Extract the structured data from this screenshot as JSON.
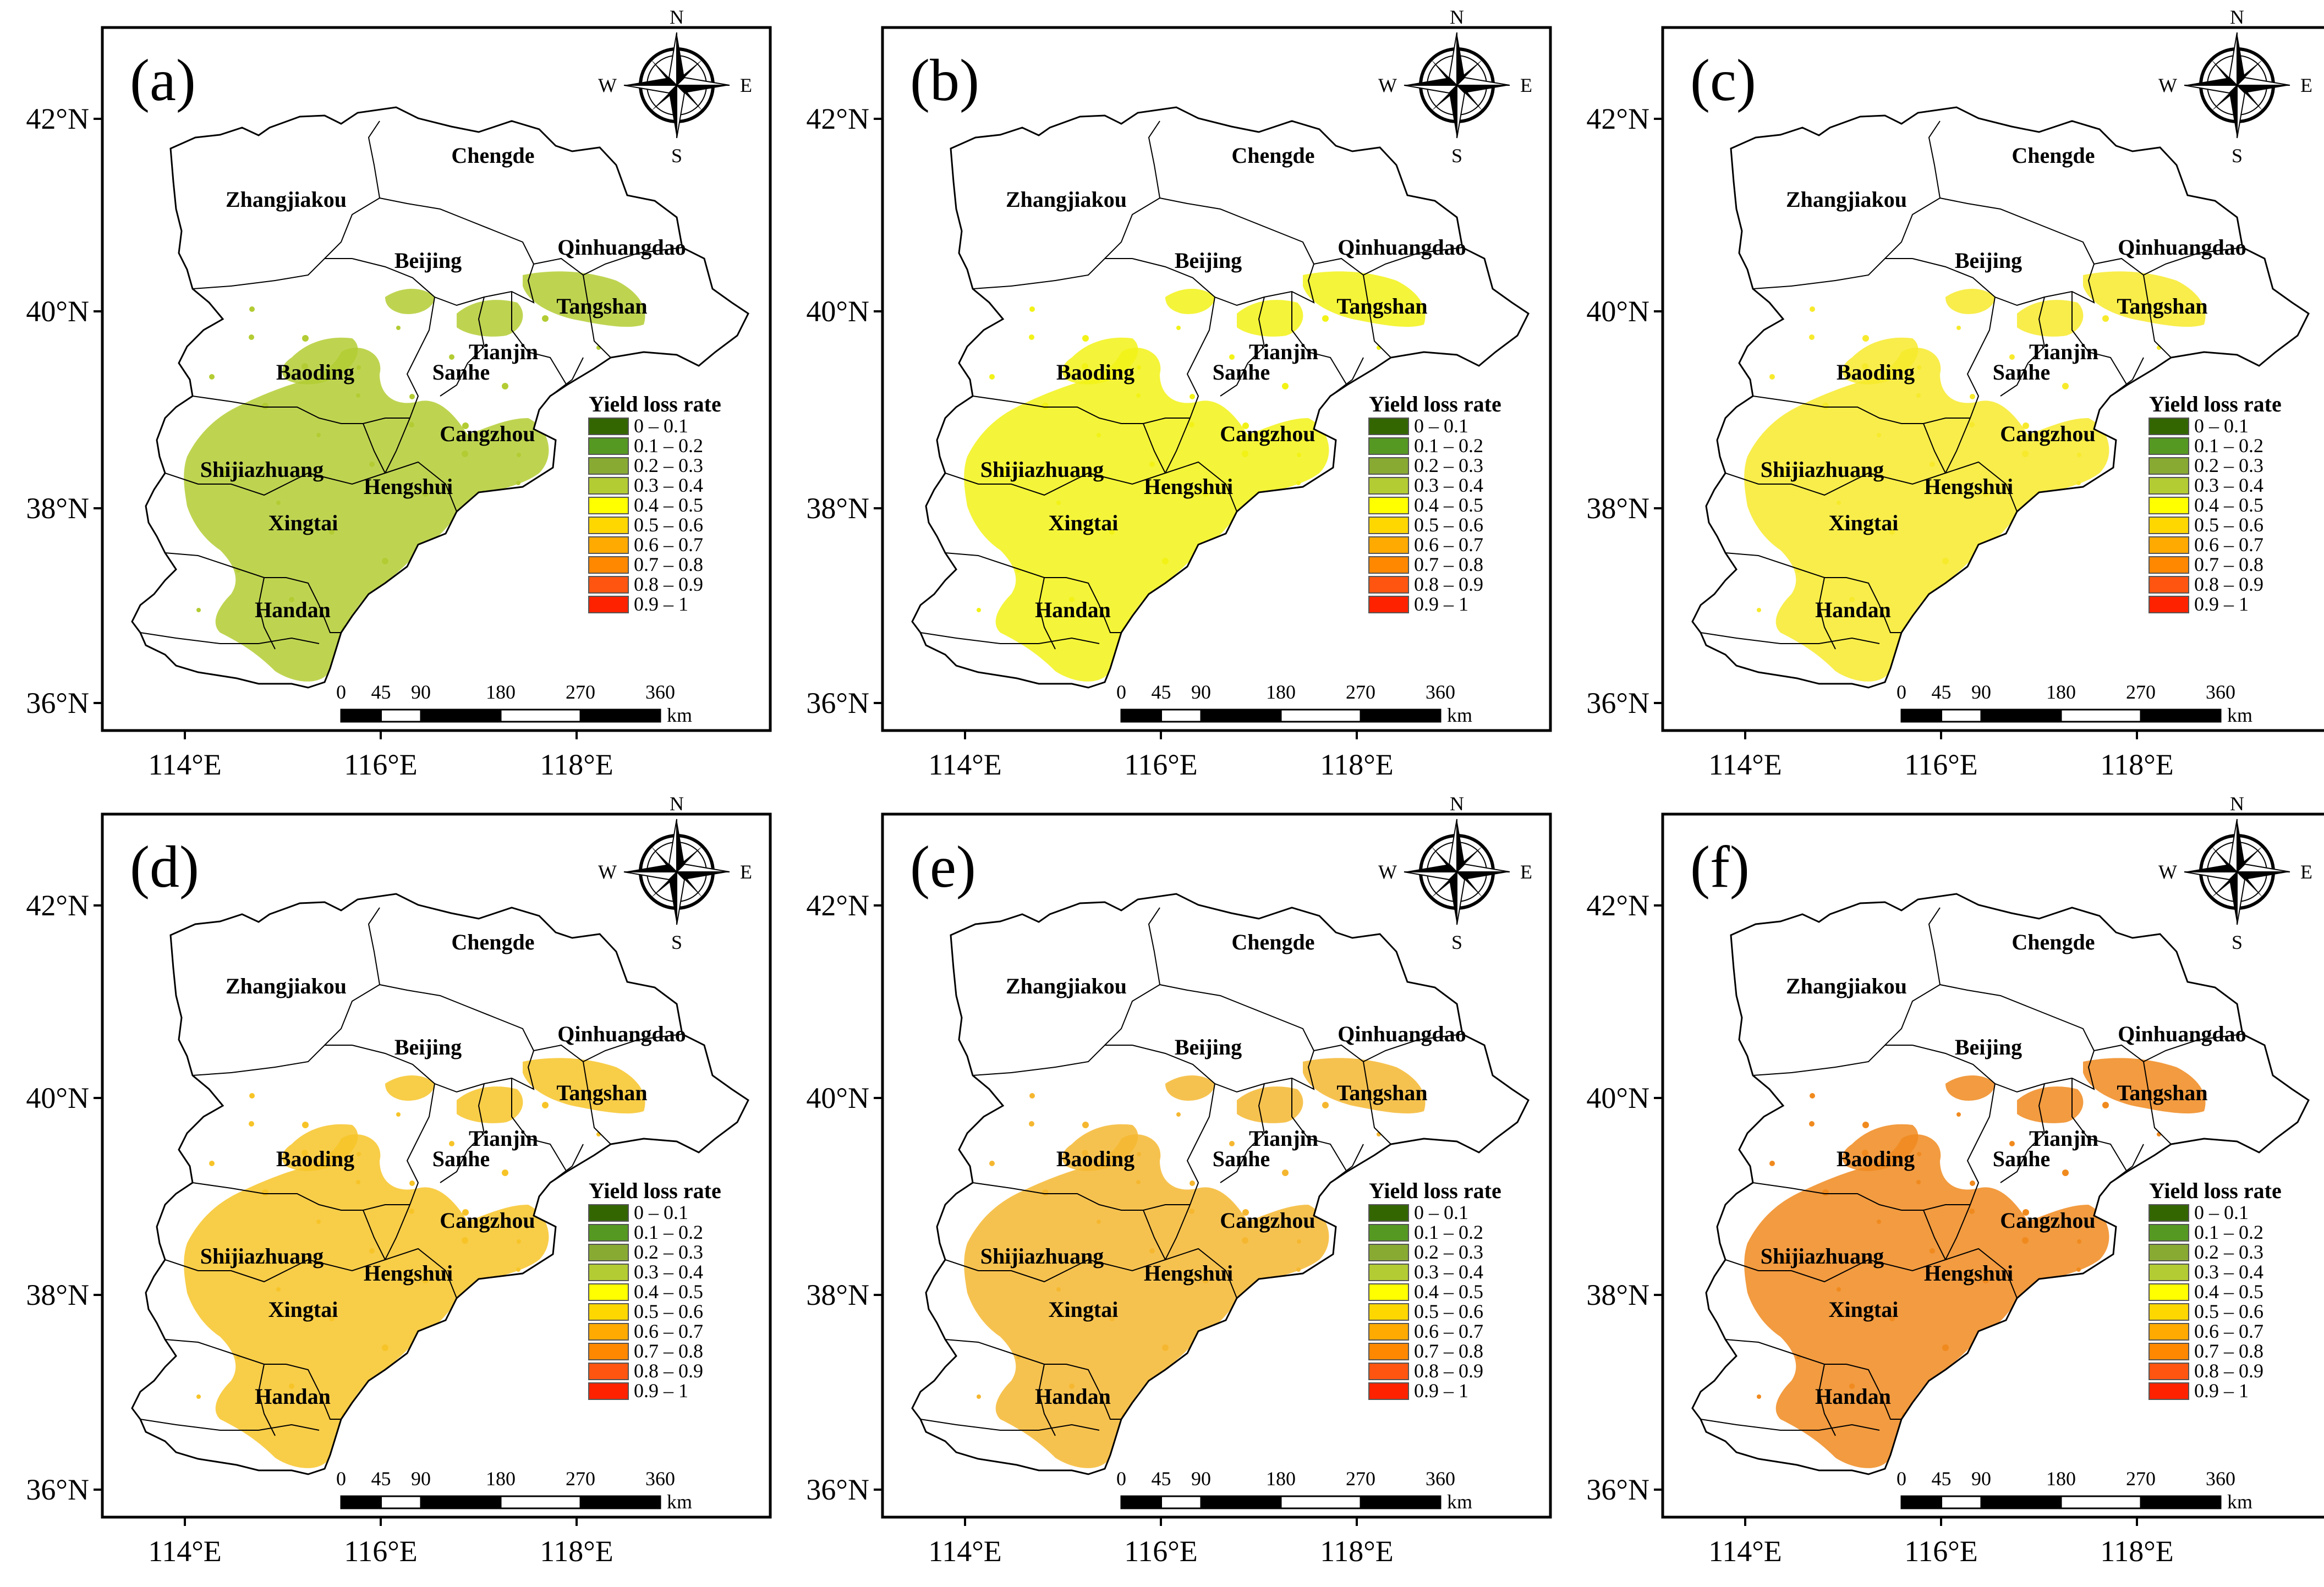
{
  "figure": {
    "panels": [
      {
        "label": "(a)",
        "fill_color": "#b3cc33"
      },
      {
        "label": "(b)",
        "fill_color": "#f2f217"
      },
      {
        "label": "(c)",
        "fill_color": "#f7ea2c"
      },
      {
        "label": "(d)",
        "fill_color": "#f7c428"
      },
      {
        "label": "(e)",
        "fill_color": "#f5b730"
      },
      {
        "label": "(f)",
        "fill_color": "#f08a1e"
      }
    ],
    "lat_ticks": [
      "42°N",
      "40°N",
      "38°N",
      "36°N"
    ],
    "lon_ticks": [
      "114°E",
      "116°E",
      "118°E"
    ],
    "cities": [
      "Chengde",
      "Zhangjiakou",
      "Beijing",
      "Qinhuangdao",
      "Tangshan",
      "Tianjin",
      "Baoding",
      "Sanhe",
      "Cangzhou",
      "Shijiazhuang",
      "Hengshui",
      "Xingtai",
      "Handan"
    ],
    "compass": {
      "n": "N",
      "s": "S",
      "w": "W",
      "e": "E"
    },
    "legend": {
      "title": "Yield loss rate",
      "classes": [
        {
          "label": "0 – 0.1",
          "color": "#336600"
        },
        {
          "label": "0.1 – 0.2",
          "color": "#559922"
        },
        {
          "label": "0.2 – 0.3",
          "color": "#88aa33"
        },
        {
          "label": "0.3 – 0.4",
          "color": "#b3cc33"
        },
        {
          "label": "0.4 – 0.5",
          "color": "#ffff00"
        },
        {
          "label": "0.5 – 0.6",
          "color": "#ffd700"
        },
        {
          "label": "0.6 – 0.7",
          "color": "#ffaa00"
        },
        {
          "label": "0.7 – 0.8",
          "color": "#ff8800"
        },
        {
          "label": "0.8 – 0.9",
          "color": "#ff5511"
        },
        {
          "label": "0.9 – 1",
          "color": "#ff2200"
        }
      ]
    },
    "scale_bar": {
      "ticks": [
        "0",
        "45",
        "90",
        "180",
        "270",
        "360"
      ],
      "unit": "km"
    }
  }
}
